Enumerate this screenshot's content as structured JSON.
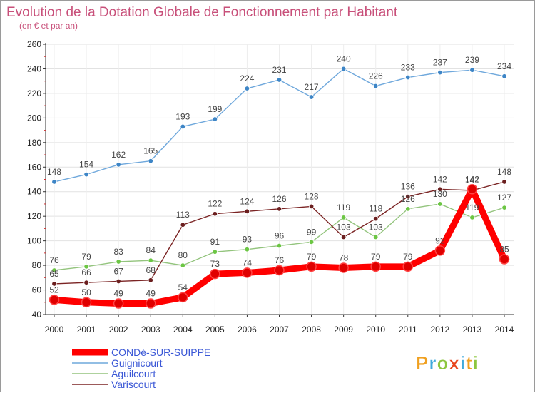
{
  "chart_data": {
    "type": "line",
    "title": "Evolution de la Dotation Globale de Fonctionnement par Habitant",
    "subtitle": "(en € et par an)",
    "x": [
      "2000",
      "2001",
      "2002",
      "2003",
      "2004",
      "2005",
      "2006",
      "2007",
      "2008",
      "2009",
      "2010",
      "2011",
      "2012",
      "2013",
      "2014"
    ],
    "ylim": [
      40,
      260
    ],
    "yticks": [
      40,
      60,
      80,
      100,
      120,
      140,
      160,
      180,
      200,
      220,
      240,
      260
    ],
    "legend_position": "bottom-left",
    "series": [
      {
        "name": "Guignicourt",
        "color": "#6fa8dc",
        "marker": "#3d85c6",
        "values": [
          148,
          154,
          162,
          165,
          193,
          199,
          224,
          231,
          217,
          240,
          226,
          233,
          237,
          239,
          234
        ]
      },
      {
        "name": "Aguilcourt",
        "color": "#93c47d",
        "marker": "#6cc644",
        "values": [
          76,
          79,
          83,
          84,
          80,
          91,
          93,
          96,
          99,
          119,
          103,
          126,
          130,
          119,
          127
        ]
      },
      {
        "name": "Variscourt",
        "color": "#7b2424",
        "marker": "#6b1f1f",
        "values": [
          65,
          66,
          67,
          68,
          113,
          122,
          124,
          126,
          128,
          103,
          118,
          136,
          142,
          141,
          148
        ]
      },
      {
        "name": "CONDé-SUR-SUIPPE",
        "color": "#ff0000",
        "marker": "#e00000",
        "bold": true,
        "values": [
          52,
          50,
          49,
          49,
          54,
          73,
          74,
          76,
          79,
          78,
          79,
          79,
          92,
          142,
          85
        ]
      }
    ],
    "labels": {
      "Guignicourt": [
        "148",
        "154",
        "162",
        "165",
        "193",
        "199",
        "224",
        "231",
        "217",
        "240",
        "226",
        "233",
        "237",
        "239",
        "234"
      ],
      "Aguilcourt": [
        "76",
        "79",
        "83",
        "84",
        "80",
        "91",
        "93",
        "96",
        "99",
        "119",
        "103",
        "126",
        "130",
        "119",
        "127"
      ],
      "Variscourt": [
        "65",
        "66",
        "67",
        "68",
        "113",
        "122",
        "124",
        "126",
        "128",
        "103",
        "118",
        "136",
        "142",
        "141",
        "148"
      ],
      "CONDé-SUR-SUIPPE": [
        "52",
        "50",
        "49",
        "49",
        "54",
        "73",
        "74",
        "76",
        "79",
        "78",
        "79",
        "79",
        "92",
        "142",
        "85"
      ]
    }
  },
  "legend": {
    "items": [
      {
        "label": "CONDé-SUR-SUIPPE",
        "color": "#ff0000",
        "text_color": "#3a57d6",
        "bold": true
      },
      {
        "label": "Guignicourt",
        "color": "#6fa8dc",
        "text_color": "#3a57d6",
        "bold": false
      },
      {
        "label": "Aguilcourt",
        "color": "#93c47d",
        "text_color": "#3a57d6",
        "bold": false
      },
      {
        "label": "Variscourt",
        "color": "#7b2424",
        "text_color": "#3a57d6",
        "bold": false
      }
    ]
  },
  "logo": {
    "text": "Proxiti"
  }
}
